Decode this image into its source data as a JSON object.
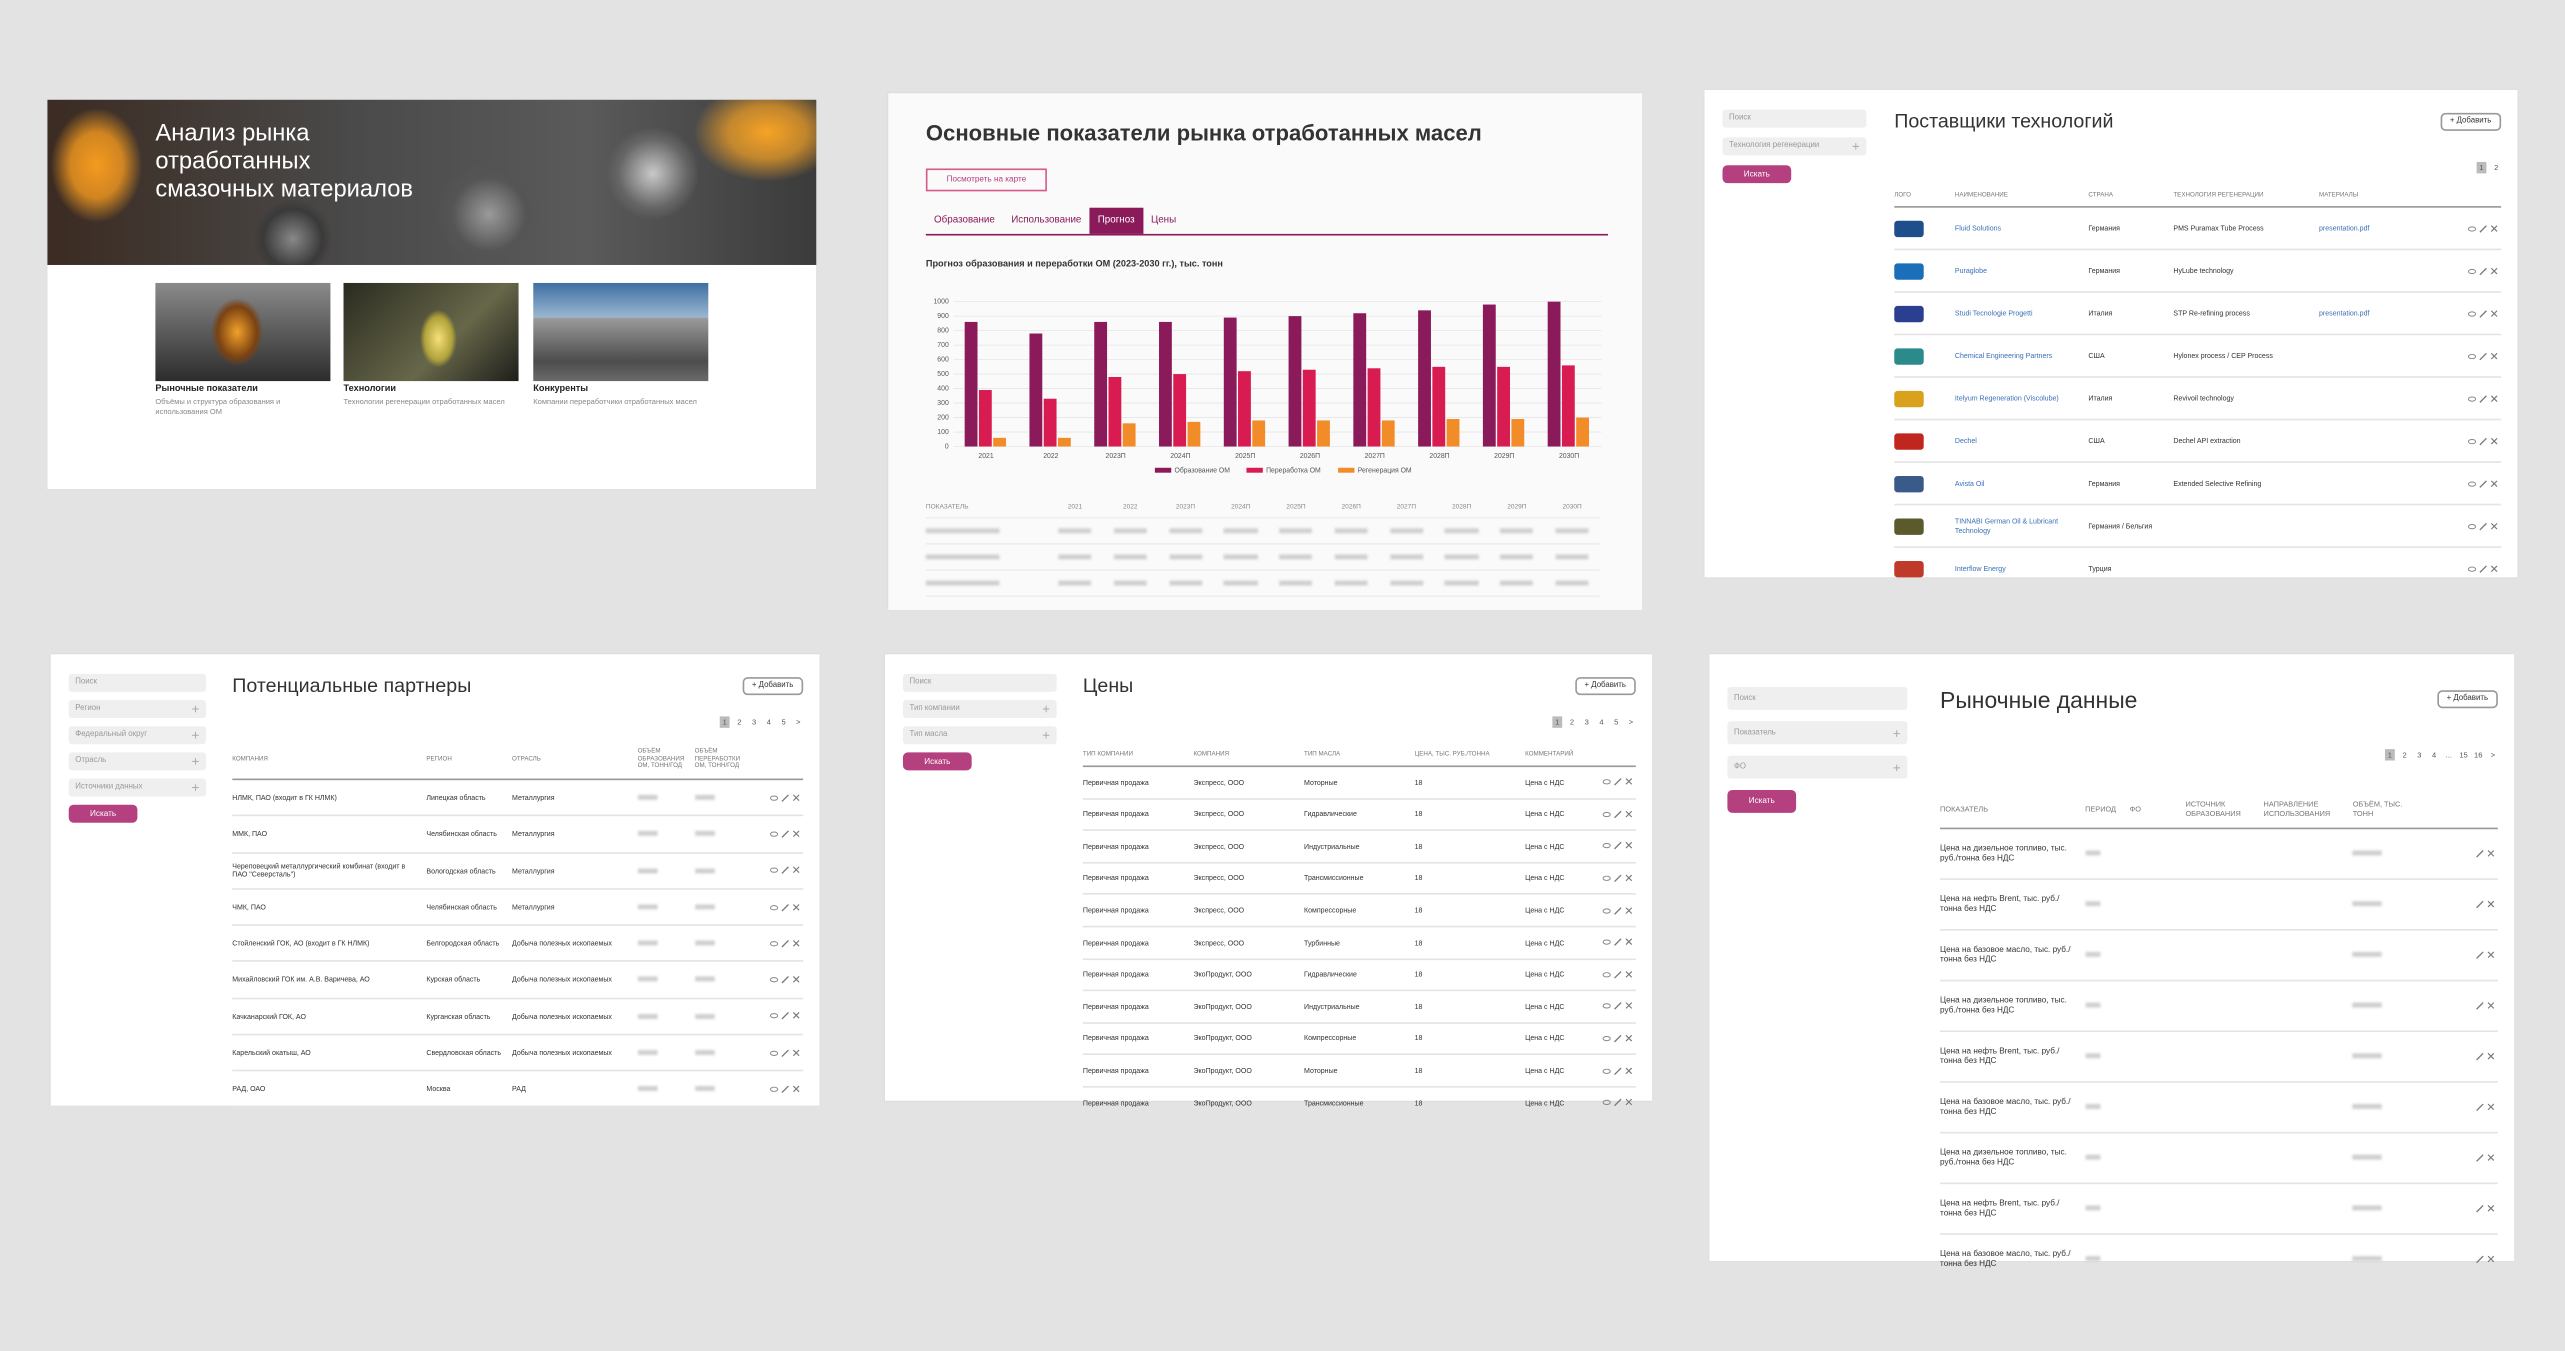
{
  "hero": {
    "title_lines": [
      "Анализ рынка",
      "отработанных",
      "смазочных материалов"
    ],
    "cards": [
      {
        "title": "Рыночные показатели",
        "description": "Объёмы и структура образования и использования ОМ"
      },
      {
        "title": "Технологии",
        "description": "Технологии регенерации отработанных масел"
      },
      {
        "title": "Конкуренты",
        "description": "Компании переработчики отработанных масел"
      }
    ]
  },
  "market": {
    "title": "Основные показатели рынка отработанных масел",
    "map_button": "Посмотреть на карте",
    "tabs": [
      "Образование",
      "Использование",
      "Прогноз",
      "Цены"
    ],
    "active_tab": 2,
    "table_header": "ПОКАЗАТЕЛЬ",
    "chart_data": {
      "type": "bar",
      "title": "Прогноз образования и переработки ОМ (2023-2030 гг.), тыс. тонн",
      "categories": [
        "2021",
        "2022",
        "2023П",
        "2024П",
        "2025П",
        "2026П",
        "2027П",
        "2028П",
        "2029П",
        "2030П"
      ],
      "series": [
        {
          "name": "Образование ОМ",
          "color": "#8b1a5a",
          "values": [
            860,
            780,
            860,
            860,
            890,
            900,
            920,
            940,
            980,
            1000
          ]
        },
        {
          "name": "Переработка ОМ",
          "color": "#d81b50",
          "values": [
            390,
            330,
            480,
            500,
            520,
            530,
            540,
            550,
            550,
            560
          ]
        },
        {
          "name": "Регенерация ОМ",
          "color": "#f28c28",
          "values": [
            60,
            60,
            160,
            170,
            180,
            180,
            180,
            190,
            190,
            200
          ]
        }
      ],
      "ylim": [
        0,
        1050
      ],
      "yticks": [
        0,
        100,
        200,
        300,
        400,
        500,
        600,
        700,
        800,
        900,
        1000
      ],
      "grid": true
    }
  },
  "suppliers": {
    "title": "Поставщики технологий",
    "add_button": "+ Добавить",
    "filters": [
      "Поиск",
      "Технология регенерации"
    ],
    "search_button": "Искать",
    "pagination": [
      "1",
      "2"
    ],
    "columns": [
      "ЛОГО",
      "НАИМЕНОВАНИЕ",
      "СТРАНА",
      "ТЕХНОЛОГИЯ РЕГЕНЕРАЦИИ",
      "МАТЕРИАЛЫ"
    ],
    "rows": [
      [
        "Fluid Solutions",
        "Германия",
        "PMS Puramax Tube Process",
        "presentation.pdf"
      ],
      [
        "Puraglobe",
        "Германия",
        "HyLube technology",
        null
      ],
      [
        "Studi Tecnologie Progetti",
        "Италия",
        "STP Re-refining process",
        "presentation.pdf"
      ],
      [
        "Chemical Engineering Partners",
        "США",
        "Hylonex process / CEP Process",
        null
      ],
      [
        "Itelyum Regeneration (Viscolube)",
        "Италия",
        "Revivoil technology",
        null
      ],
      [
        "Dechel",
        "США",
        "Dechel API extraction",
        null
      ],
      [
        "Avista Oil",
        "Германия",
        "Extended Selective Refining",
        null
      ],
      [
        "TINNABI German Oil & Lubricant Technology",
        "Германия / Бельгия",
        null,
        null
      ],
      [
        "Interflow Energy",
        "Турция",
        null,
        null
      ]
    ]
  },
  "partners": {
    "title": "Потенциальные партнеры",
    "add_button": "+ Добавить",
    "filters": [
      "Поиск",
      "Регион",
      "Федеральный округ",
      "Отрасль",
      "Источники данных"
    ],
    "search_button": "Искать",
    "pagination": [
      "1",
      "2",
      "3",
      "4",
      "5",
      ">"
    ],
    "columns": [
      "КОМПАНИЯ",
      "РЕГИОН",
      "ОТРАСЛЬ",
      "ОБЪЁМ ОБРАЗОВАНИЯ ОМ, ТОНН/ГОД",
      "ОБЪЁМ ПЕРЕРАБОТКИ ОМ, ТОНН/ГОД"
    ],
    "rows": [
      [
        "НЛМК, ПАО (входит в ГК НЛМК)",
        "Липецкая область",
        "Металлургия"
      ],
      [
        "ММК, ПАО",
        "Челябинская область",
        "Металлургия"
      ],
      [
        "Череповецкий металлургический комбинат (входит в ПАО \"Северсталь\")",
        "Вологодская область",
        "Металлургия"
      ],
      [
        "ЧМК, ПАО",
        "Челябинская область",
        "Металлургия"
      ],
      [
        "Стойленский ГОК, АО (входит в ГК НЛМК)",
        "Белгородская область",
        "Добыча полезных ископаемых"
      ],
      [
        "Михайловский ГОК им. А.В. Варичева, АО",
        "Курская область",
        "Добыча полезных ископаемых"
      ],
      [
        "Качканарский ГОК, АО",
        "Курганская область",
        "Добыча полезных ископаемых"
      ],
      [
        "Карельский окатыш, АО",
        "Свердловская область",
        "Добыча полезных ископаемых"
      ],
      [
        "РАД, ОАО",
        "Москва",
        "РАД"
      ]
    ]
  },
  "prices": {
    "title": "Цены",
    "add_button": "+ Добавить",
    "filters": [
      "Поиск",
      "Тип компании",
      "Тип масла"
    ],
    "search_button": "Искать",
    "pagination": [
      "1",
      "2",
      "3",
      "4",
      "5",
      ">"
    ],
    "columns": [
      "ТИП КОМПАНИИ",
      "КОМПАНИЯ",
      "ТИП МАСЛА",
      "ЦЕНА, ТЫС. РУБ./ТОННА",
      "КОММЕНТАРИЙ"
    ],
    "rows": [
      [
        "Первичная продажа",
        "Экспресс, ООО",
        "Моторные",
        18,
        "Цена с НДС"
      ],
      [
        "Первичная продажа",
        "Экспресс, ООО",
        "Гидравлические",
        18,
        "Цена с НДС"
      ],
      [
        "Первичная продажа",
        "Экспресс, ООО",
        "Индустриальные",
        18,
        "Цена с НДС"
      ],
      [
        "Первичная продажа",
        "Экспресс, ООО",
        "Трансмиссионные",
        18,
        "Цена с НДС"
      ],
      [
        "Первичная продажа",
        "Экспресс, ООО",
        "Компрессорные",
        18,
        "Цена с НДС"
      ],
      [
        "Первичная продажа",
        "Экспресс, ООО",
        "Турбинные",
        18,
        "Цена с НДС"
      ],
      [
        "Первичная продажа",
        "ЭкоПродукт, ООО",
        "Гидравлические",
        18,
        "Цена с НДС"
      ],
      [
        "Первичная продажа",
        "ЭкоПродукт, ООО",
        "Индустриальные",
        18,
        "Цена с НДС"
      ],
      [
        "Первичная продажа",
        "ЭкоПродукт, ООО",
        "Компрессорные",
        18,
        "Цена с НДС"
      ],
      [
        "Первичная продажа",
        "ЭкоПродукт, ООО",
        "Моторные",
        18,
        "Цена с НДС"
      ],
      [
        "Первичная продажа",
        "ЭкоПродукт, ООО",
        "Трансмиссионные",
        18,
        "Цена с НДС"
      ]
    ]
  },
  "market_data": {
    "title": "Рыночные данные",
    "add_button": "+ Добавить",
    "filters": [
      "Поиск",
      "Показатель",
      "ФО"
    ],
    "search_button": "Искать",
    "pagination": [
      "1",
      "2",
      "3",
      "4",
      "...",
      "15",
      "16",
      ">"
    ],
    "columns": [
      "ПОКАЗАТЕЛЬ",
      "ПЕРИОД",
      "ФО",
      "ИСТОЧНИК ОБРАЗОВАНИЯ",
      "НАПРАВЛЕНИЕ ИСПОЛЬЗОВАНИЯ",
      "ОБЪЁМ, ТЫС. ТОНН"
    ],
    "rows": [
      [
        "Цена на дизельное топливо, тыс. руб./тонна без НДС"
      ],
      [
        "Цена на нефть Brent, тыс. руб./тонна без НДС"
      ],
      [
        "Цена на базовое масло, тыс. руб./тонна без НДС"
      ],
      [
        "Цена на дизельное топливо, тыс. руб./тонна без НДС"
      ],
      [
        "Цена на нефть Brent, тыс. руб./тонна без НДС"
      ],
      [
        "Цена на базовое масло, тыс. руб./тонна без НДС"
      ],
      [
        "Цена на дизельное топливо, тыс. руб./тонна без НДС"
      ],
      [
        "Цена на нефть Brent, тыс. руб./тонна без НДС"
      ],
      [
        "Цена на базовое масло, тыс. руб./тонна без НДС"
      ]
    ]
  }
}
